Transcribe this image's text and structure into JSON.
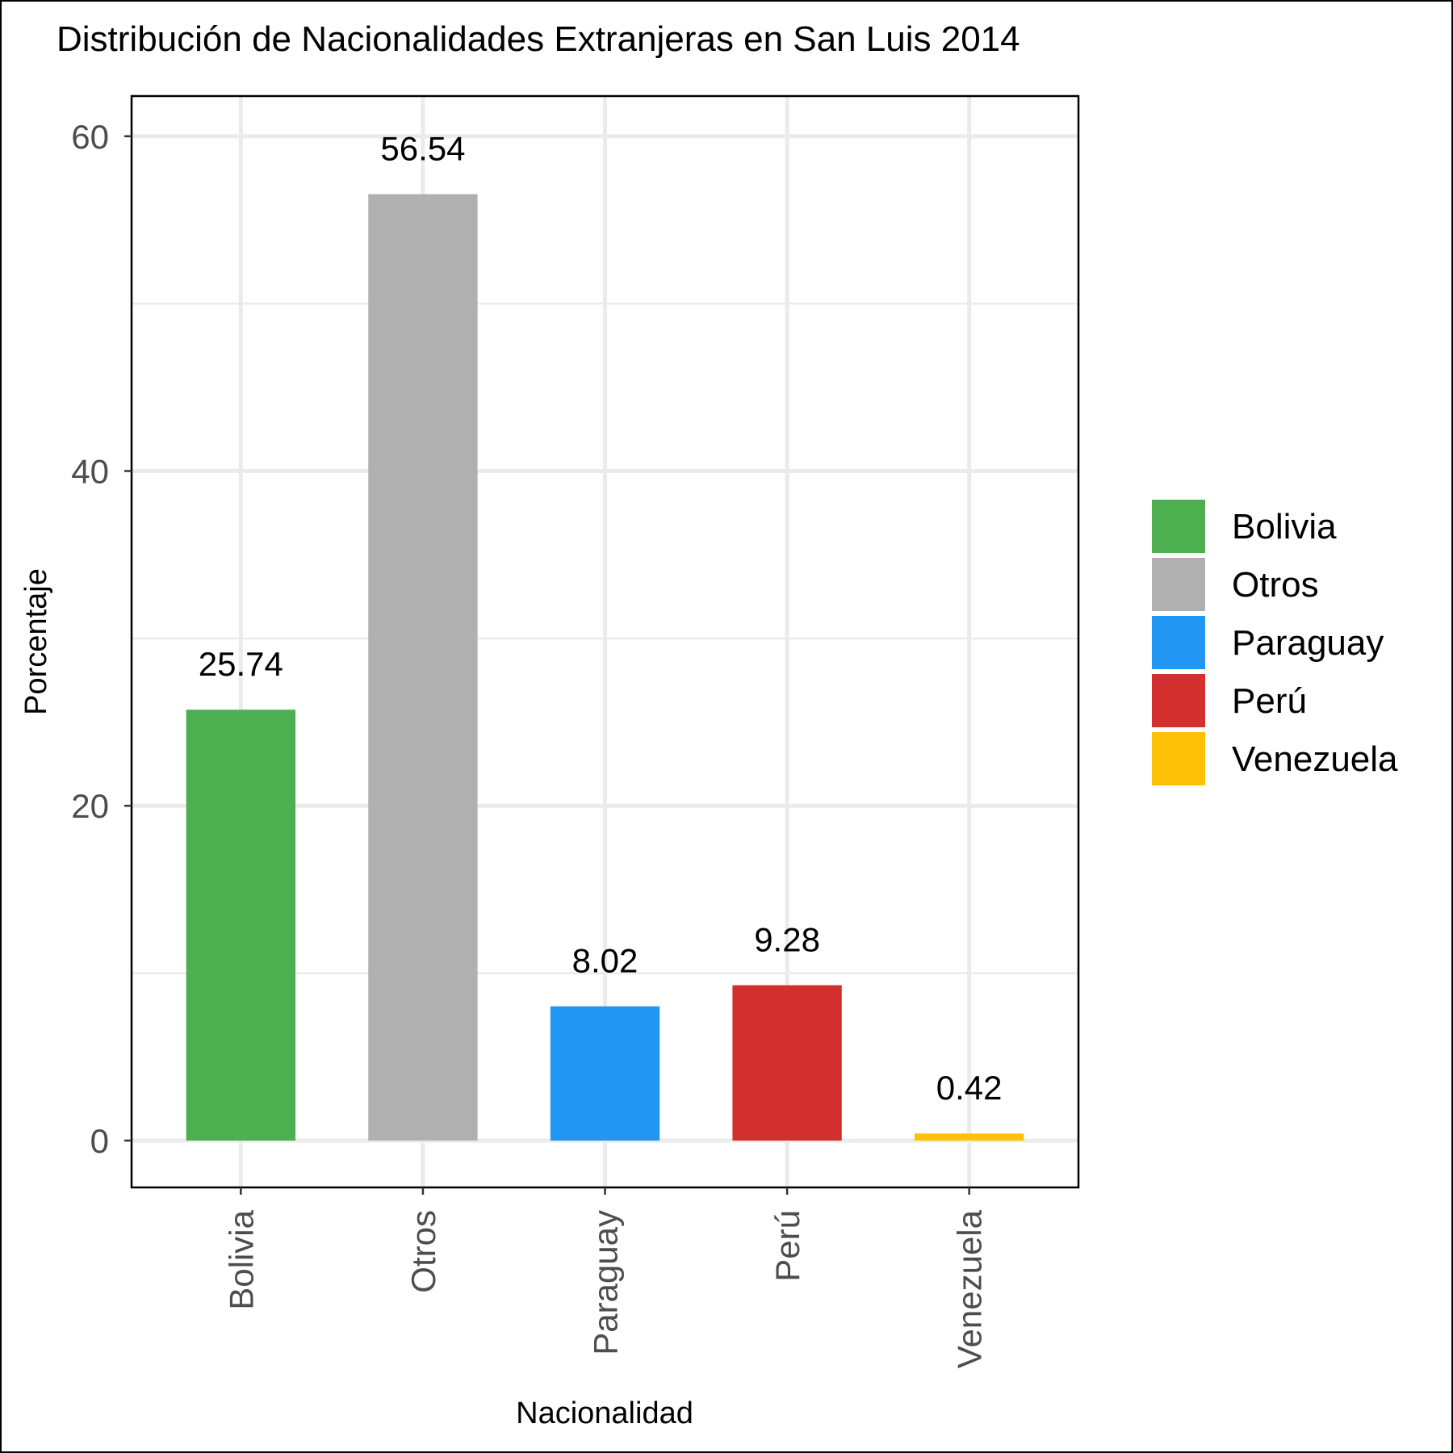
{
  "chart_data": {
    "type": "bar",
    "title": "Distribución de Nacionalidades Extranjeras en San Luis 2014",
    "xlabel": "Nacionalidad",
    "ylabel": "Porcentaje",
    "categories": [
      "Bolivia",
      "Otros",
      "Paraguay",
      "Perú",
      "Venezuela"
    ],
    "values": [
      25.74,
      56.54,
      8.02,
      9.28,
      0.42
    ],
    "data_labels": [
      "25.74",
      "56.54",
      "8.02",
      "9.28",
      "0.42"
    ],
    "colors": [
      "#4caf50",
      "#b0b0b0",
      "#2196f3",
      "#d32f2f",
      "#ffc107"
    ],
    "ylim": [
      -2.8,
      62.4
    ],
    "y_ticks": [
      0,
      20,
      40,
      60
    ],
    "y_tick_labels": [
      "0",
      "20",
      "40",
      "60"
    ],
    "y_minor_ticks": [
      10,
      30,
      50
    ],
    "grid": true,
    "legend": {
      "position": "right",
      "entries": [
        "Bolivia",
        "Otros",
        "Paraguay",
        "Perú",
        "Venezuela"
      ]
    }
  }
}
